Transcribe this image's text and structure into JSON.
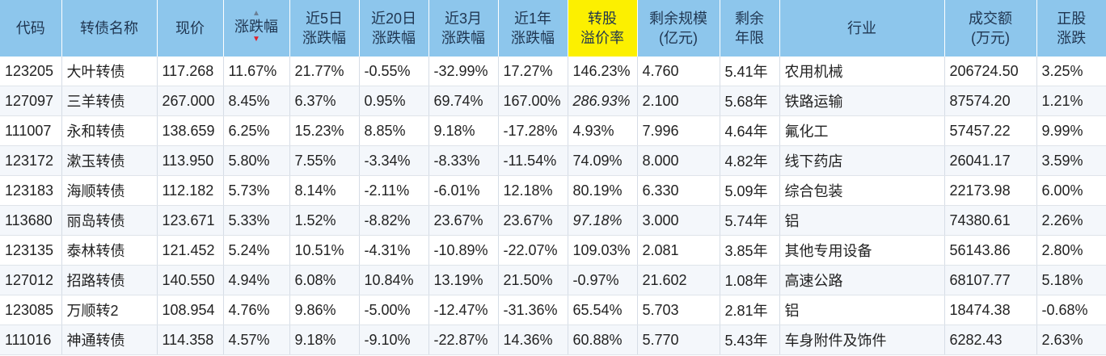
{
  "columns": [
    {
      "key": "code",
      "label_lines": [
        "代码"
      ]
    },
    {
      "key": "name",
      "label_lines": [
        "转债名称"
      ]
    },
    {
      "key": "price",
      "label_lines": [
        "现价"
      ]
    },
    {
      "key": "change",
      "label_lines": [
        "涨跌幅"
      ],
      "sort": "desc"
    },
    {
      "key": "chg5d",
      "label_lines": [
        "近5日",
        "涨跌幅"
      ]
    },
    {
      "key": "chg20d",
      "label_lines": [
        "近20日",
        "涨跌幅"
      ]
    },
    {
      "key": "chg3m",
      "label_lines": [
        "近3月",
        "涨跌幅"
      ]
    },
    {
      "key": "chg1y",
      "label_lines": [
        "近1年",
        "涨跌幅"
      ]
    },
    {
      "key": "premium",
      "label_lines": [
        "转股",
        "溢价率"
      ],
      "highlight": true
    },
    {
      "key": "scale",
      "label_lines": [
        "剩余规模",
        "(亿元)"
      ]
    },
    {
      "key": "years",
      "label_lines": [
        "剩余",
        "年限"
      ]
    },
    {
      "key": "industry",
      "label_lines": [
        "行业"
      ]
    },
    {
      "key": "volume",
      "label_lines": [
        "成交额",
        "(万元)"
      ]
    },
    {
      "key": "stock_chg",
      "label_lines": [
        "正股",
        "涨跌"
      ]
    }
  ],
  "colors": {
    "header_bg": "#8dc6ec",
    "highlight_bg": "#fcf000",
    "up": "#d8282a",
    "down": "#1a8a1a",
    "code": "#2b6cb0"
  },
  "rows": [
    {
      "code": "123205",
      "name": "大叶转债",
      "price": "117.268",
      "change": "11.67%",
      "chg5d": "21.77%",
      "chg20d": "-0.55%",
      "chg3m": "-32.99%",
      "chg1y": "17.27%",
      "premium": "146.23%",
      "scale": "4.760",
      "years": "5.41年",
      "industry": "农用机械",
      "volume": "206724.50",
      "stock_chg": "3.25%"
    },
    {
      "code": "127097",
      "name": "三羊转债",
      "price": "267.000",
      "change": "8.45%",
      "chg5d": "6.37%",
      "chg20d": "0.95%",
      "chg3m": "69.74%",
      "chg1y": "167.00%",
      "premium": "286.93%",
      "premium_dim": true,
      "scale": "2.100",
      "years": "5.68年",
      "industry": "铁路运输",
      "volume": "87574.20",
      "stock_chg": "1.21%"
    },
    {
      "code": "111007",
      "name": "永和转债",
      "price": "138.659",
      "change": "6.25%",
      "chg5d": "15.23%",
      "chg20d": "8.85%",
      "chg3m": "9.18%",
      "chg1y": "-17.28%",
      "premium": "4.93%",
      "scale": "7.996",
      "years": "4.64年",
      "industry": "氟化工",
      "volume": "57457.22",
      "stock_chg": "9.99%"
    },
    {
      "code": "123172",
      "name": "漱玉转债",
      "price": "113.950",
      "change": "5.80%",
      "chg5d": "7.55%",
      "chg20d": "-3.34%",
      "chg3m": "-8.33%",
      "chg1y": "-11.54%",
      "premium": "74.09%",
      "scale": "8.000",
      "years": "4.82年",
      "industry": "线下药店",
      "volume": "26041.17",
      "stock_chg": "3.59%"
    },
    {
      "code": "123183",
      "name": "海顺转债",
      "price": "112.182",
      "change": "5.73%",
      "chg5d": "8.14%",
      "chg20d": "-2.11%",
      "chg3m": "-6.01%",
      "chg1y": "12.18%",
      "premium": "80.19%",
      "scale": "6.330",
      "years": "5.09年",
      "industry": "综合包装",
      "volume": "22173.98",
      "stock_chg": "6.00%"
    },
    {
      "code": "113680",
      "name": "丽岛转债",
      "price": "123.671",
      "change": "5.33%",
      "chg5d": "1.52%",
      "chg20d": "-8.82%",
      "chg3m": "23.67%",
      "chg1y": "23.67%",
      "premium": "97.18%",
      "premium_dim": true,
      "scale": "3.000",
      "years": "5.74年",
      "industry": "铝",
      "volume": "74380.61",
      "stock_chg": "2.26%"
    },
    {
      "code": "123135",
      "name": "泰林转债",
      "name_red": true,
      "price": "121.452",
      "change": "5.24%",
      "chg5d": "10.51%",
      "chg20d": "-4.31%",
      "chg3m": "-10.89%",
      "chg1y": "-22.07%",
      "premium": "109.03%",
      "scale": "2.081",
      "years": "3.85年",
      "industry": "其他专用设备",
      "volume": "56143.86",
      "stock_chg": "2.80%"
    },
    {
      "code": "127012",
      "name": "招路转债",
      "price": "140.550",
      "change": "4.94%",
      "chg5d": "6.08%",
      "chg20d": "10.84%",
      "chg3m": "13.19%",
      "chg1y": "21.50%",
      "premium": "-0.97%",
      "scale": "21.602",
      "years": "1.08年",
      "industry": "高速公路",
      "volume": "68107.77",
      "stock_chg": "5.18%"
    },
    {
      "code": "123085",
      "name": "万顺转2",
      "price": "108.954",
      "change": "4.76%",
      "chg5d": "9.86%",
      "chg20d": "-5.00%",
      "chg3m": "-12.47%",
      "chg1y": "-31.36%",
      "premium": "65.54%",
      "scale": "5.703",
      "years": "2.81年",
      "industry": "铝",
      "volume": "18474.38",
      "stock_chg": "-0.68%"
    },
    {
      "code": "111016",
      "name": "神通转债",
      "price": "114.358",
      "change": "4.57%",
      "chg5d": "9.18%",
      "chg20d": "-9.10%",
      "chg3m": "-22.87%",
      "chg1y": "14.36%",
      "premium": "60.88%",
      "scale": "5.770",
      "years": "5.43年",
      "industry": "车身附件及饰件",
      "volume": "6282.43",
      "stock_chg": "2.63%"
    }
  ]
}
